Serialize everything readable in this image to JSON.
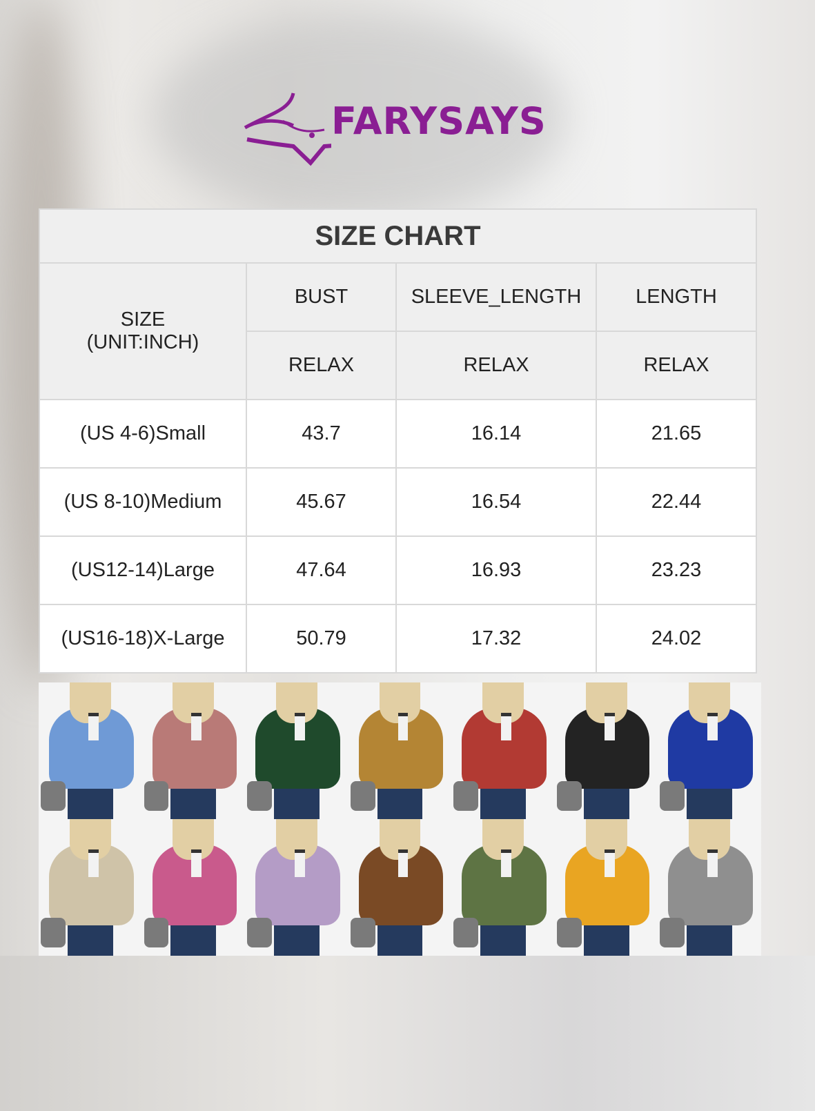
{
  "brand": {
    "name": "FARYSAYS",
    "color": "#8a1e93"
  },
  "size_chart": {
    "title": "SIZE CHART",
    "size_header": "SIZE",
    "unit_header": "(UNIT:INCH)",
    "columns": [
      {
        "label": "BUST",
        "fit": "RELAX"
      },
      {
        "label": "SLEEVE_LENGTH",
        "fit": "RELAX"
      },
      {
        "label": "LENGTH",
        "fit": "RELAX"
      }
    ],
    "rows": [
      {
        "size": "(US 4-6)Small",
        "values": [
          "43.7",
          "16.14",
          "21.65"
        ]
      },
      {
        "size": "(US 8-10)Medium",
        "values": [
          "45.67",
          "16.54",
          "22.44"
        ]
      },
      {
        "size": "(US12-14)Large",
        "values": [
          "47.64",
          "16.93",
          "23.23"
        ]
      },
      {
        "size": "(US16-18)X-Large",
        "values": [
          "50.79",
          "17.32",
          "24.02"
        ]
      }
    ]
  },
  "color_swatches": [
    "#6f9ad6",
    "#b97a77",
    "#1f4a2c",
    "#b48534",
    "#b23a33",
    "#232323",
    "#1f3aa3",
    "#cfc3a8",
    "#c95a8c",
    "#b49cc6",
    "#7a4a25",
    "#5e7444",
    "#e9a522",
    "#8f8f8f"
  ]
}
